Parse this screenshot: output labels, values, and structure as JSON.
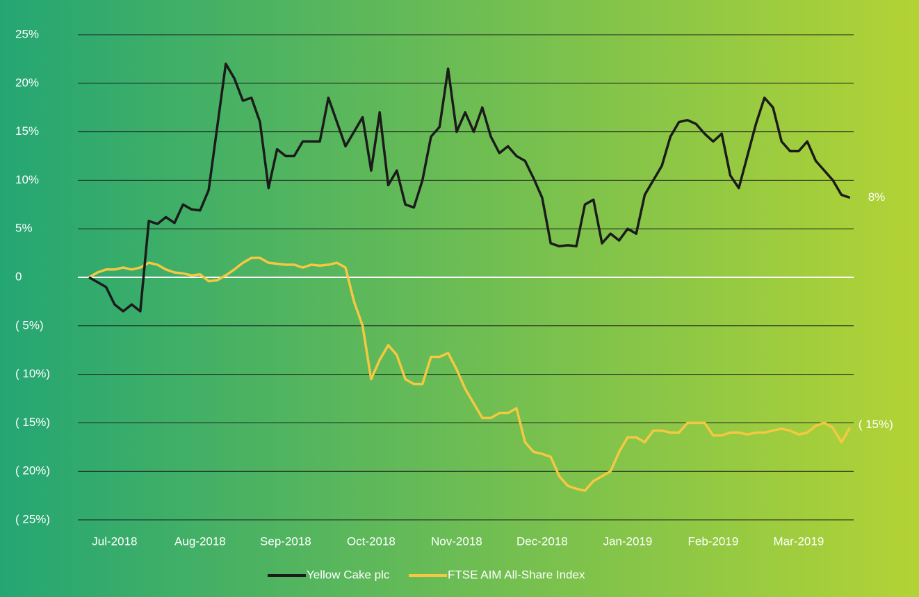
{
  "chart_data": {
    "type": "line",
    "categories": [
      null,
      null,
      null,
      "Jul-2018",
      null,
      null,
      null,
      null,
      null,
      null,
      null,
      null,
      null,
      "Aug-2018",
      null,
      null,
      null,
      null,
      null,
      null,
      null,
      null,
      null,
      "Sep-2018",
      null,
      null,
      null,
      null,
      null,
      null,
      null,
      null,
      null,
      "Oct-2018",
      null,
      null,
      null,
      null,
      null,
      null,
      null,
      null,
      null,
      "Nov-2018",
      null,
      null,
      null,
      null,
      null,
      null,
      null,
      null,
      null,
      "Dec-2018",
      null,
      null,
      null,
      null,
      null,
      null,
      null,
      null,
      null,
      "Jan-2019",
      null,
      null,
      null,
      null,
      null,
      null,
      null,
      null,
      null,
      "Feb-2019",
      null,
      null,
      null,
      null,
      null,
      null,
      null,
      null,
      null,
      "Mar-2019",
      null,
      null,
      null,
      null,
      null,
      null
    ],
    "series": [
      {
        "name": "Yellow Cake plc",
        "color": "#1b1b1b",
        "values": [
          0,
          -0.5,
          -1,
          -2.8,
          -3.5,
          -2.8,
          -3.5,
          5.8,
          5.5,
          6.2,
          5.6,
          7.5,
          7,
          6.9,
          9,
          15.5,
          22,
          20.5,
          18.2,
          18.5,
          16,
          9.2,
          13.2,
          12.5,
          12.5,
          14,
          14,
          14,
          18.5,
          16,
          13.5,
          15,
          16.5,
          11,
          17,
          9.5,
          11,
          7.5,
          7.2,
          10,
          14.5,
          15.5,
          21.5,
          15,
          17,
          15,
          17.5,
          14.5,
          12.8,
          13.5,
          12.5,
          12,
          10.2,
          8.2,
          3.5,
          3.2,
          3.3,
          3.2,
          7.5,
          8,
          3.5,
          4.5,
          3.8,
          5,
          4.5,
          8.5,
          10,
          11.5,
          14.5,
          16,
          16.2,
          15.8,
          14.8,
          14,
          14.8,
          10.5,
          9.2,
          12.5,
          15.8,
          18.5,
          17.5,
          14,
          13,
          13,
          14,
          12,
          11,
          10,
          8.5,
          8.2
        ],
        "value_labels": [
          null,
          null,
          null,
          null,
          null,
          null,
          null,
          null,
          null,
          null,
          null,
          null,
          null,
          null,
          null,
          null,
          null,
          null,
          null,
          null,
          null,
          null,
          null,
          null,
          null,
          null,
          null,
          null,
          null,
          null,
          null,
          null,
          null,
          null,
          null,
          null,
          null,
          null,
          null,
          null,
          null,
          null,
          null,
          null,
          null,
          null,
          null,
          null,
          null,
          null,
          null,
          null,
          null,
          null,
          null,
          null,
          null,
          null,
          null,
          null,
          null,
          null,
          null,
          null,
          null,
          null,
          null,
          null,
          null,
          null,
          null,
          null,
          null,
          null,
          null,
          null,
          null,
          null,
          null,
          null,
          null,
          null,
          null,
          null,
          null,
          null,
          null,
          null,
          null,
          "8%"
        ]
      },
      {
        "name": "FTSE AIM All-Share Index",
        "color": "#f5c842",
        "values": [
          0,
          0.5,
          0.8,
          0.8,
          1,
          0.8,
          1,
          1.5,
          1.3,
          0.8,
          0.5,
          0.4,
          0.2,
          0.3,
          -0.4,
          -0.3,
          0.2,
          0.8,
          1.5,
          2,
          2,
          1.5,
          1.4,
          1.3,
          1.3,
          1,
          1.3,
          1.2,
          1.3,
          1.5,
          1,
          -2.5,
          -5,
          -10.5,
          -8.5,
          -7,
          -8,
          -10.5,
          -11,
          -11,
          -8.2,
          -8.2,
          -7.8,
          -9.5,
          -11.5,
          -13,
          -14.5,
          -14.5,
          -14,
          -14,
          -13.5,
          -17,
          -18,
          -18.2,
          -18.5,
          -20.5,
          -21.5,
          -21.8,
          -22,
          -21,
          -20.5,
          -20,
          -18,
          -16.5,
          -16.5,
          -17,
          -15.8,
          -15.8,
          -16,
          -16,
          -15,
          -15,
          -15,
          -16.3,
          -16.3,
          -16,
          -16,
          -16.2,
          -16,
          -16,
          -15.8,
          -15.6,
          -15.8,
          -16.2,
          -16,
          -15.3,
          -15,
          -15.5,
          -17,
          -15.5
        ],
        "value_labels": [
          null,
          null,
          null,
          null,
          null,
          null,
          null,
          null,
          null,
          null,
          null,
          null,
          null,
          null,
          null,
          null,
          null,
          null,
          null,
          null,
          null,
          null,
          null,
          null,
          null,
          null,
          null,
          null,
          null,
          null,
          null,
          null,
          null,
          null,
          null,
          null,
          null,
          null,
          null,
          null,
          null,
          null,
          null,
          null,
          null,
          null,
          null,
          null,
          null,
          null,
          null,
          null,
          null,
          null,
          null,
          null,
          null,
          null,
          null,
          null,
          null,
          null,
          null,
          null,
          null,
          null,
          null,
          null,
          null,
          null,
          null,
          null,
          null,
          null,
          null,
          null,
          null,
          null,
          null,
          null,
          null,
          null,
          null,
          null,
          null,
          null,
          null,
          null,
          null,
          "( 15%)"
        ]
      }
    ],
    "ylim": [
      -25,
      25
    ],
    "yticks": [
      {
        "value": -25,
        "label": "( 25%)"
      },
      {
        "value": -20,
        "label": "( 20%)"
      },
      {
        "value": -15,
        "label": "( 15%)"
      },
      {
        "value": -10,
        "label": "( 10%)"
      },
      {
        "value": -5,
        "label": "( 5%)"
      },
      0,
      {
        "value": 5,
        "label": "5%"
      },
      {
        "value": 10,
        "label": "10%"
      },
      {
        "value": 15,
        "label": "15%"
      },
      {
        "value": 20,
        "label": "20%"
      },
      {
        "value": 25,
        "label": "25%"
      }
    ],
    "grid": true,
    "legend": "bottom"
  }
}
